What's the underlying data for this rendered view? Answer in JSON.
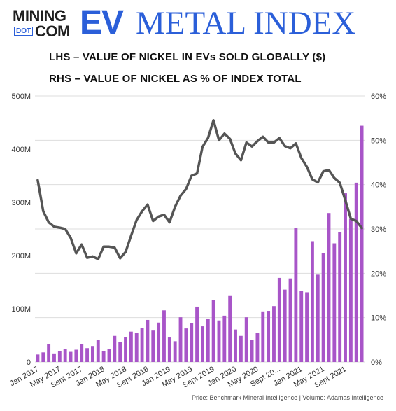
{
  "logo": {
    "mining": "MINING",
    "dot": "DOT",
    "com": "COM",
    "ev": "EV",
    "index_word": "METAL INDEX"
  },
  "subtitles": {
    "lhs": "LHS – VALUE OF NICKEL IN EVs SOLD GLOBALLY ($)",
    "rhs": "RHS – VALUE OF NICKEL AS % OF INDEX TOTAL"
  },
  "footer": "Price: Benchmark Mineral Intelligence | Volume: Adamas Intelligence",
  "colors": {
    "bar": "#a855c8",
    "line": "#555555",
    "grid": "#dddddd",
    "brand": "#2b5fd9"
  },
  "chart_data": {
    "type": "bar+line",
    "x_tick_labels": [
      "Jan 2017",
      "May 2017",
      "Sept 2017",
      "Jan 2018",
      "May 2018",
      "Sept 2018",
      "Jan 2019",
      "May 2019",
      "Sept 2019",
      "Jan 2020",
      "May 2020",
      "Sept 20...",
      "Jan 2021",
      "May 2021",
      "Sept 2021"
    ],
    "left_axis": {
      "ticks": [
        "0",
        "100M",
        "200M",
        "300M",
        "400M",
        "500M"
      ],
      "ylim": [
        0,
        500
      ]
    },
    "right_axis": {
      "ticks": [
        "0%",
        "10%",
        "20%",
        "30%",
        "40%",
        "50%",
        "60%"
      ],
      "ylim": [
        0,
        60
      ]
    },
    "bars_value_musd": [
      14,
      18,
      33,
      16,
      21,
      25,
      19,
      23,
      33,
      26,
      30,
      42,
      20,
      25,
      49,
      37,
      47,
      57,
      54,
      64,
      79,
      59,
      74,
      97,
      46,
      39,
      84,
      63,
      73,
      104,
      67,
      81,
      117,
      78,
      87,
      124,
      61,
      49,
      84,
      41,
      54,
      95,
      96,
      105,
      158,
      136,
      157,
      252,
      133,
      131,
      227,
      164,
      205,
      280,
      223,
      244,
      317,
      269,
      337,
      444
    ],
    "line_pct": [
      41,
      34,
      31.5,
      30.5,
      30.3,
      30,
      28,
      24.5,
      26.5,
      23.5,
      23.8,
      23.2,
      26,
      26,
      25.8,
      23.4,
      24.8,
      28.5,
      32,
      34,
      35.5,
      31.8,
      32.8,
      33.2,
      31.5,
      35,
      37.5,
      39,
      42,
      42.5,
      48.5,
      50.5,
      54.5,
      50,
      51.5,
      50.3,
      47,
      45.5,
      49.5,
      48.6,
      49.8,
      50.8,
      49.5,
      49.5,
      50.5,
      48.7,
      48.2,
      49.3,
      46,
      44,
      41.2,
      40.5,
      43,
      43.3,
      41.5,
      40.4,
      36.5,
      32.3,
      31.8,
      30.2
    ]
  }
}
